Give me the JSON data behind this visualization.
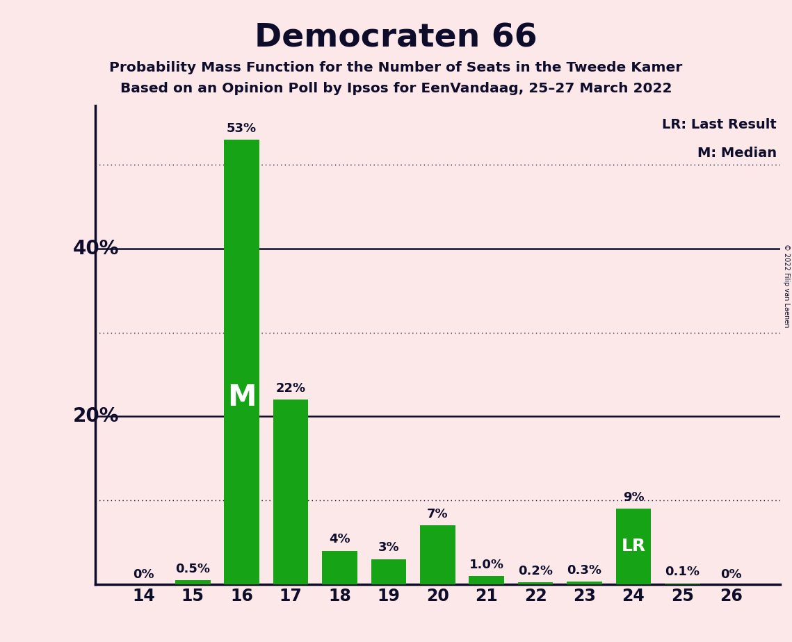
{
  "title": "Democraten 66",
  "subtitle1": "Probability Mass Function for the Number of Seats in the Tweede Kamer",
  "subtitle2": "Based on an Opinion Poll by Ipsos for EenVandaag, 25–27 March 2022",
  "copyright": "© 2022 Filip van Laenen",
  "legend1": "LR: Last Result",
  "legend2": "M: Median",
  "categories": [
    14,
    15,
    16,
    17,
    18,
    19,
    20,
    21,
    22,
    23,
    24,
    25,
    26
  ],
  "values": [
    0.0,
    0.5,
    53.0,
    22.0,
    4.0,
    3.0,
    7.0,
    1.0,
    0.2,
    0.3,
    9.0,
    0.1,
    0.0
  ],
  "labels": [
    "0%",
    "0.5%",
    "53%",
    "22%",
    "4%",
    "3%",
    "7%",
    "1.0%",
    "0.2%",
    "0.3%",
    "9%",
    "0.1%",
    "0%"
  ],
  "bar_color": "#16a416",
  "lr_bar": 24,
  "median_bar": 16,
  "background_color": "#fce8e8",
  "text_color": "#0d0d2b",
  "solid_ticks": [
    20,
    40
  ],
  "dotted_ticks": [
    10,
    30,
    50
  ],
  "ytick_labels": [
    20,
    40
  ],
  "ylim": [
    0,
    57
  ],
  "figsize": [
    11.39,
    9.24
  ],
  "dpi": 100
}
